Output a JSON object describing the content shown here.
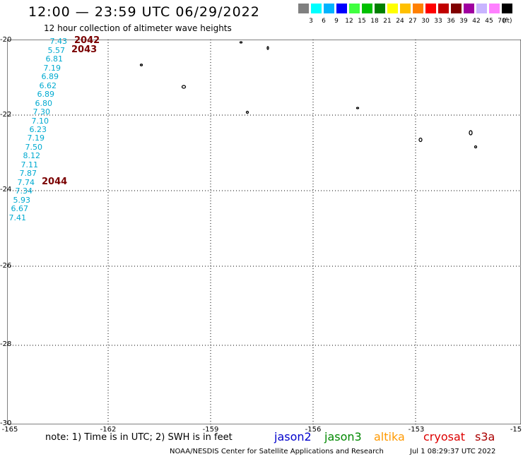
{
  "header": {
    "title": "12:00 — 23:59 UTC 06/29/2022",
    "subtitle": "12 hour collection of altimeter wave heights"
  },
  "scale": {
    "colors": [
      "#808080",
      "#00ffff",
      "#00b4ff",
      "#0000ff",
      "#40ff40",
      "#00c000",
      "#008000",
      "#ffff00",
      "#ffc000",
      "#ff8000",
      "#ff0000",
      "#c00000",
      "#800000",
      "#a000a0",
      "#c8b4ff",
      "#ff80ff",
      "#000000"
    ],
    "labels": [
      "3",
      "6",
      "9",
      "12",
      "15",
      "18",
      "21",
      "24",
      "27",
      "30",
      "33",
      "36",
      "39",
      "42",
      "45",
      "70"
    ],
    "unit": "(ft)"
  },
  "map": {
    "lat_labels": [
      "-20",
      "-22",
      "-24",
      "-26",
      "-28",
      "-30"
    ],
    "lon_labels": [
      "-165",
      "-162",
      "-159",
      "-156",
      "-153",
      "-15"
    ],
    "lat_range": [
      -30,
      -20
    ],
    "lon_range": [
      -165,
      -150
    ],
    "swh_values": [
      "7.43",
      "5.57",
      "6.81",
      "7.19",
      "6.89",
      "6.62",
      "6.89",
      "6.80",
      "7.30",
      "7.10",
      "6.23",
      "7.19",
      "7.50",
      "8.12",
      "7.11",
      "7.87",
      "7.74",
      "7.34",
      "5.93",
      "6.67",
      "7.41"
    ],
    "orbit_labels": [
      "2042",
      "2043",
      "2044"
    ]
  },
  "footer": {
    "note": "note:  1) Time is in UTC;  2) SWH is in feet",
    "satellites": [
      {
        "name": "jason2",
        "color": "#0000cc"
      },
      {
        "name": "jason3",
        "color": "#008800"
      },
      {
        "name": "altika",
        "color": "#ff9900"
      },
      {
        "name": "cryosat",
        "color": "#dd0000"
      },
      {
        "name": "s3a",
        "color": "#aa0000"
      }
    ],
    "credit": "NOAA/NESDIS Center for Satellite Applications and Research",
    "timestamp": "Jul  1 08:29:37 UTC 2022"
  }
}
